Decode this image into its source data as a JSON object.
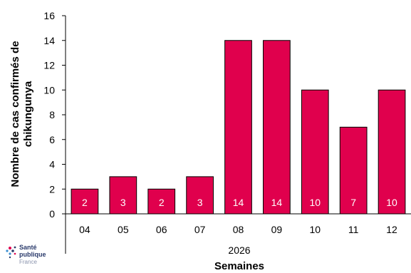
{
  "chart_data": {
    "type": "bar",
    "categories": [
      "04",
      "05",
      "06",
      "07",
      "08",
      "09",
      "10",
      "11",
      "12"
    ],
    "values": [
      2,
      3,
      2,
      3,
      14,
      14,
      10,
      7,
      10
    ],
    "year_label": "2026",
    "xlabel": "Semaines",
    "ylabel_line1": "Nombre de cas confirmés de",
    "ylabel_line2": "chikungunya",
    "ylim": [
      0,
      16
    ],
    "yticks": [
      0,
      2,
      4,
      6,
      8,
      10,
      12,
      14,
      16
    ],
    "bar_color": "#e0004d",
    "grid": false,
    "data_labels": true
  },
  "logo": {
    "line1": "Santé",
    "line2": "publique",
    "line3": "France",
    "colors": [
      "#2a3a6b",
      "#e0004d",
      "#3a8fd0"
    ]
  }
}
